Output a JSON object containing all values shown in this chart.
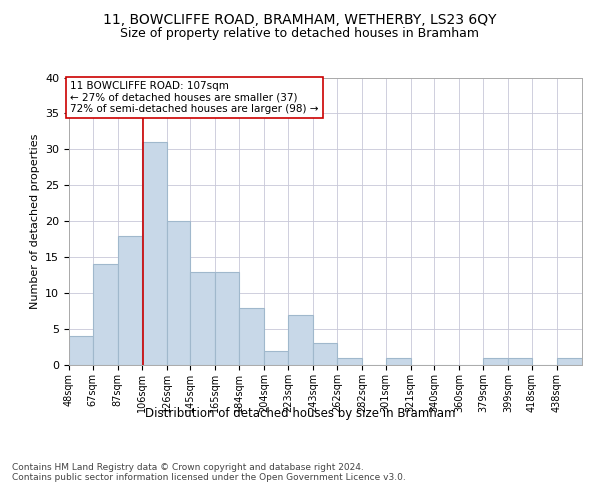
{
  "title_line1": "11, BOWCLIFFE ROAD, BRAMHAM, WETHERBY, LS23 6QY",
  "title_line2": "Size of property relative to detached houses in Bramham",
  "xlabel": "Distribution of detached houses by size in Bramham",
  "ylabel": "Number of detached properties",
  "bar_labels": [
    "48sqm",
    "67sqm",
    "87sqm",
    "106sqm",
    "126sqm",
    "145sqm",
    "165sqm",
    "184sqm",
    "204sqm",
    "223sqm",
    "243sqm",
    "262sqm",
    "282sqm",
    "301sqm",
    "321sqm",
    "340sqm",
    "360sqm",
    "379sqm",
    "399sqm",
    "418sqm",
    "438sqm"
  ],
  "bar_values": [
    4,
    14,
    18,
    31,
    20,
    13,
    13,
    8,
    2,
    7,
    3,
    1,
    0,
    1,
    0,
    0,
    0,
    1,
    1,
    0,
    1
  ],
  "bar_color": "#c8d8e8",
  "bar_edgecolor": "#a0b8cc",
  "ylim": [
    0,
    40
  ],
  "yticks": [
    0,
    5,
    10,
    15,
    20,
    25,
    30,
    35,
    40
  ],
  "redline_x": 107,
  "redline_color": "#cc0000",
  "annotation_line1": "11 BOWCLIFFE ROAD: 107sqm",
  "annotation_line2": "← 27% of detached houses are smaller (37)",
  "annotation_line3": "72% of semi-detached houses are larger (98) →",
  "annotation_box_color": "#ffffff",
  "annotation_box_edgecolor": "#cc0000",
  "background_color": "#ffffff",
  "grid_color": "#c8c8d8",
  "footer_text": "Contains HM Land Registry data © Crown copyright and database right 2024.\nContains public sector information licensed under the Open Government Licence v3.0.",
  "bin_edges": [
    48,
    67,
    87,
    106,
    126,
    145,
    165,
    184,
    204,
    223,
    243,
    262,
    282,
    301,
    321,
    340,
    360,
    379,
    399,
    418,
    438,
    458
  ]
}
